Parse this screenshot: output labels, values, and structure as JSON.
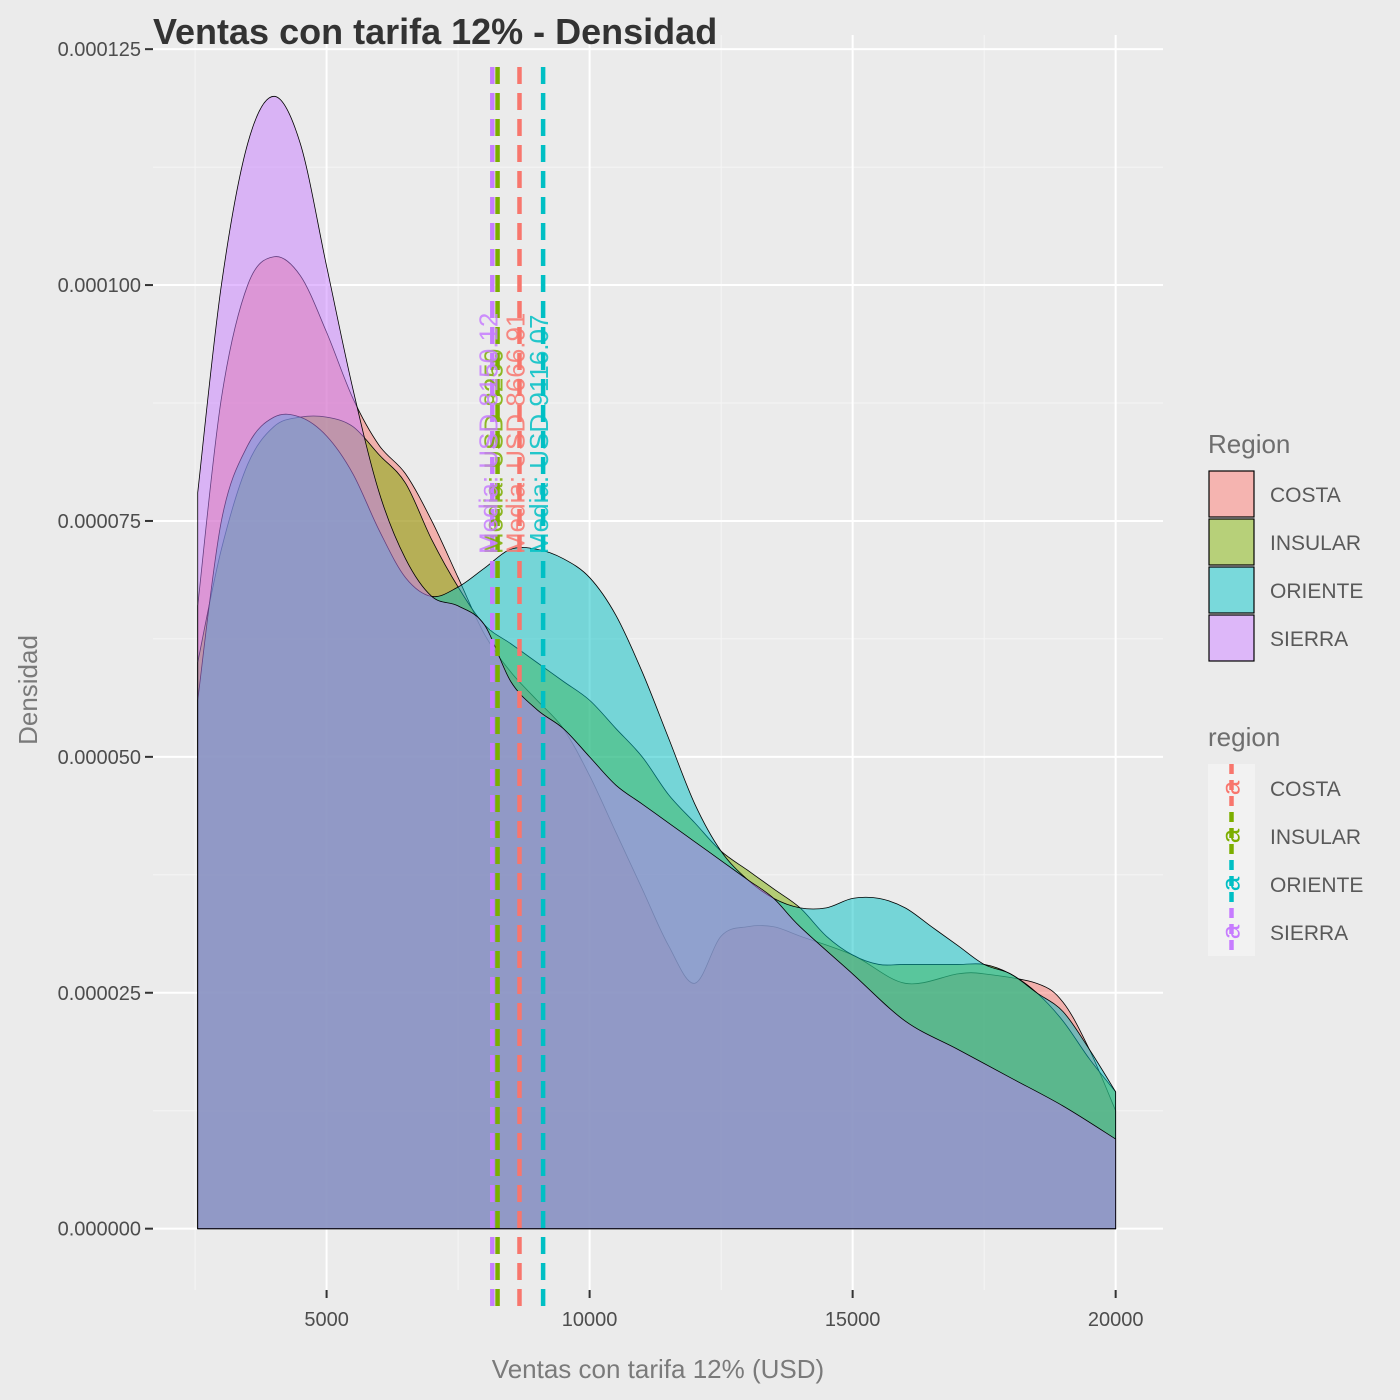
{
  "chart_data": {
    "type": "area",
    "title": "Ventas con tarifa 12% - Densidad",
    "xlabel": "Ventas con tarifa 12% (USD)",
    "ylabel": "Densidad",
    "xlim": [
      1700,
      20900
    ],
    "ylim": [
      -6.5e-06,
      0.0001265
    ],
    "x_ticks": [
      5000,
      10000,
      15000,
      20000
    ],
    "x_tick_labels": [
      "5000",
      "10000",
      "15000",
      "20000"
    ],
    "y_ticks": [
      0,
      2.5e-05,
      5e-05,
      7.5e-05,
      0.0001,
      0.000125
    ],
    "y_tick_labels": [
      "0.000000",
      "0.000025",
      "0.000050",
      "0.000075",
      "0.000100",
      "0.000125"
    ],
    "grid": true,
    "fill_opacity": 0.5,
    "series": [
      {
        "name": "COSTA",
        "color": "#F8766D",
        "mean": 8666.91,
        "mean_label": "Media: USD 8666.91",
        "points": [
          [
            2550,
            6.6e-05
          ],
          [
            3000,
            8.8e-05
          ],
          [
            3500,
            0.0001
          ],
          [
            4000,
            0.000103
          ],
          [
            4500,
            0.000101
          ],
          [
            5000,
            9.5e-05
          ],
          [
            5500,
            8.8e-05
          ],
          [
            6000,
            8.3e-05
          ],
          [
            6500,
            8e-05
          ],
          [
            7000,
            7.5e-05
          ],
          [
            7500,
            6.9e-05
          ],
          [
            8000,
            6.3e-05
          ],
          [
            8500,
            5.9e-05
          ],
          [
            9000,
            5.6e-05
          ],
          [
            9500,
            5.3e-05
          ],
          [
            10000,
            4.8e-05
          ],
          [
            10500,
            4.2e-05
          ],
          [
            11000,
            3.6e-05
          ],
          [
            11500,
            3e-05
          ],
          [
            12000,
            2.6e-05
          ],
          [
            12500,
            3.1e-05
          ],
          [
            13000,
            3.2e-05
          ],
          [
            13500,
            3.2e-05
          ],
          [
            14000,
            3.1e-05
          ],
          [
            15000,
            2.9e-05
          ],
          [
            16000,
            2.6e-05
          ],
          [
            17000,
            2.7e-05
          ],
          [
            17500,
            2.7e-05
          ],
          [
            18500,
            2.6e-05
          ],
          [
            19000,
            2.4e-05
          ],
          [
            19500,
            1.9e-05
          ],
          [
            20000,
            1.25e-05
          ]
        ]
      },
      {
        "name": "INSULAR",
        "color": "#7CAE00",
        "mean": 8250.0,
        "mean_label": "Media: USD 8250",
        "points": [
          [
            2550,
            6e-05
          ],
          [
            3000,
            7.2e-05
          ],
          [
            3500,
            8.1e-05
          ],
          [
            4000,
            8.5e-05
          ],
          [
            4500,
            8.6e-05
          ],
          [
            5000,
            8.6e-05
          ],
          [
            5500,
            8.5e-05
          ],
          [
            6000,
            8.2e-05
          ],
          [
            6500,
            7.9e-05
          ],
          [
            7000,
            7.3e-05
          ],
          [
            7500,
            6.8e-05
          ],
          [
            8000,
            6.4e-05
          ],
          [
            8500,
            6.2e-05
          ],
          [
            9000,
            6e-05
          ],
          [
            9500,
            5.8e-05
          ],
          [
            10000,
            5.6e-05
          ],
          [
            10500,
            5.3e-05
          ],
          [
            11000,
            5e-05
          ],
          [
            11500,
            4.6e-05
          ],
          [
            12000,
            4.3e-05
          ],
          [
            12500,
            4e-05
          ],
          [
            13000,
            3.8e-05
          ],
          [
            13500,
            3.6e-05
          ],
          [
            14000,
            3.4e-05
          ],
          [
            14500,
            3.1e-05
          ],
          [
            15000,
            2.9e-05
          ],
          [
            15500,
            2.8e-05
          ],
          [
            16000,
            2.8e-05
          ],
          [
            17000,
            2.8e-05
          ],
          [
            17500,
            2.8e-05
          ],
          [
            18000,
            2.7e-05
          ],
          [
            18500,
            2.5e-05
          ],
          [
            19000,
            2.2e-05
          ],
          [
            19500,
            1.8e-05
          ],
          [
            20000,
            1.45e-05
          ]
        ]
      },
      {
        "name": "ORIENTE",
        "color": "#00BFC4",
        "mean": 9116.07,
        "mean_label": "Media: USD 9116.07",
        "points": [
          [
            2550,
            5.6e-05
          ],
          [
            3000,
            7.5e-05
          ],
          [
            3500,
            8.3e-05
          ],
          [
            4000,
            8.6e-05
          ],
          [
            4500,
            8.6e-05
          ],
          [
            5000,
            8.4e-05
          ],
          [
            5500,
            8e-05
          ],
          [
            6000,
            7.4e-05
          ],
          [
            6500,
            6.9e-05
          ],
          [
            7000,
            6.7e-05
          ],
          [
            7500,
            6.8e-05
          ],
          [
            8000,
            7e-05
          ],
          [
            8500,
            7.2e-05
          ],
          [
            9000,
            7.2e-05
          ],
          [
            9500,
            7.1e-05
          ],
          [
            10000,
            6.9e-05
          ],
          [
            10500,
            6.5e-05
          ],
          [
            11000,
            5.9e-05
          ],
          [
            11500,
            5.2e-05
          ],
          [
            12000,
            4.5e-05
          ],
          [
            12500,
            4e-05
          ],
          [
            13000,
            3.7e-05
          ],
          [
            13500,
            3.5e-05
          ],
          [
            14000,
            3.4e-05
          ],
          [
            14500,
            3.4e-05
          ],
          [
            15000,
            3.5e-05
          ],
          [
            15500,
            3.5e-05
          ],
          [
            16000,
            3.4e-05
          ],
          [
            16500,
            3.2e-05
          ],
          [
            17000,
            3e-05
          ],
          [
            17500,
            2.8e-05
          ],
          [
            18000,
            2.7e-05
          ],
          [
            18500,
            2.5e-05
          ],
          [
            19000,
            2.3e-05
          ],
          [
            19500,
            1.9e-05
          ],
          [
            20000,
            1.45e-05
          ]
        ]
      },
      {
        "name": "SIERRA",
        "color": "#C77CFF",
        "mean": 8150.12,
        "mean_label": "Media: USD 8150.12",
        "points": [
          [
            2550,
            7.8e-05
          ],
          [
            3000,
            0.0001
          ],
          [
            3500,
            0.000115
          ],
          [
            4000,
            0.00012
          ],
          [
            4500,
            0.000115
          ],
          [
            5000,
            0.000102
          ],
          [
            5500,
            8.9e-05
          ],
          [
            6000,
            7.8e-05
          ],
          [
            6500,
            7.1e-05
          ],
          [
            7000,
            6.7e-05
          ],
          [
            7500,
            6.6e-05
          ],
          [
            8000,
            6.4e-05
          ],
          [
            8500,
            5.8e-05
          ],
          [
            9000,
            5.5e-05
          ],
          [
            9500,
            5.3e-05
          ],
          [
            10000,
            5e-05
          ],
          [
            10500,
            4.7e-05
          ],
          [
            11000,
            4.5e-05
          ],
          [
            11500,
            4.3e-05
          ],
          [
            12000,
            4.1e-05
          ],
          [
            12500,
            3.9e-05
          ],
          [
            13000,
            3.7e-05
          ],
          [
            13500,
            3.5e-05
          ],
          [
            14000,
            3.2e-05
          ],
          [
            15000,
            2.7e-05
          ],
          [
            16000,
            2.2e-05
          ],
          [
            17000,
            1.9e-05
          ],
          [
            18000,
            1.6e-05
          ],
          [
            19000,
            1.3e-05
          ],
          [
            20000,
            9.5e-06
          ]
        ]
      }
    ],
    "legends": [
      {
        "title": "Region",
        "kind": "fill",
        "items": [
          "COSTA",
          "INSULAR",
          "ORIENTE",
          "SIERRA"
        ]
      },
      {
        "title": "region",
        "kind": "line",
        "glyph": "a",
        "items": [
          "COSTA",
          "INSULAR",
          "ORIENTE",
          "SIERRA"
        ]
      }
    ]
  }
}
